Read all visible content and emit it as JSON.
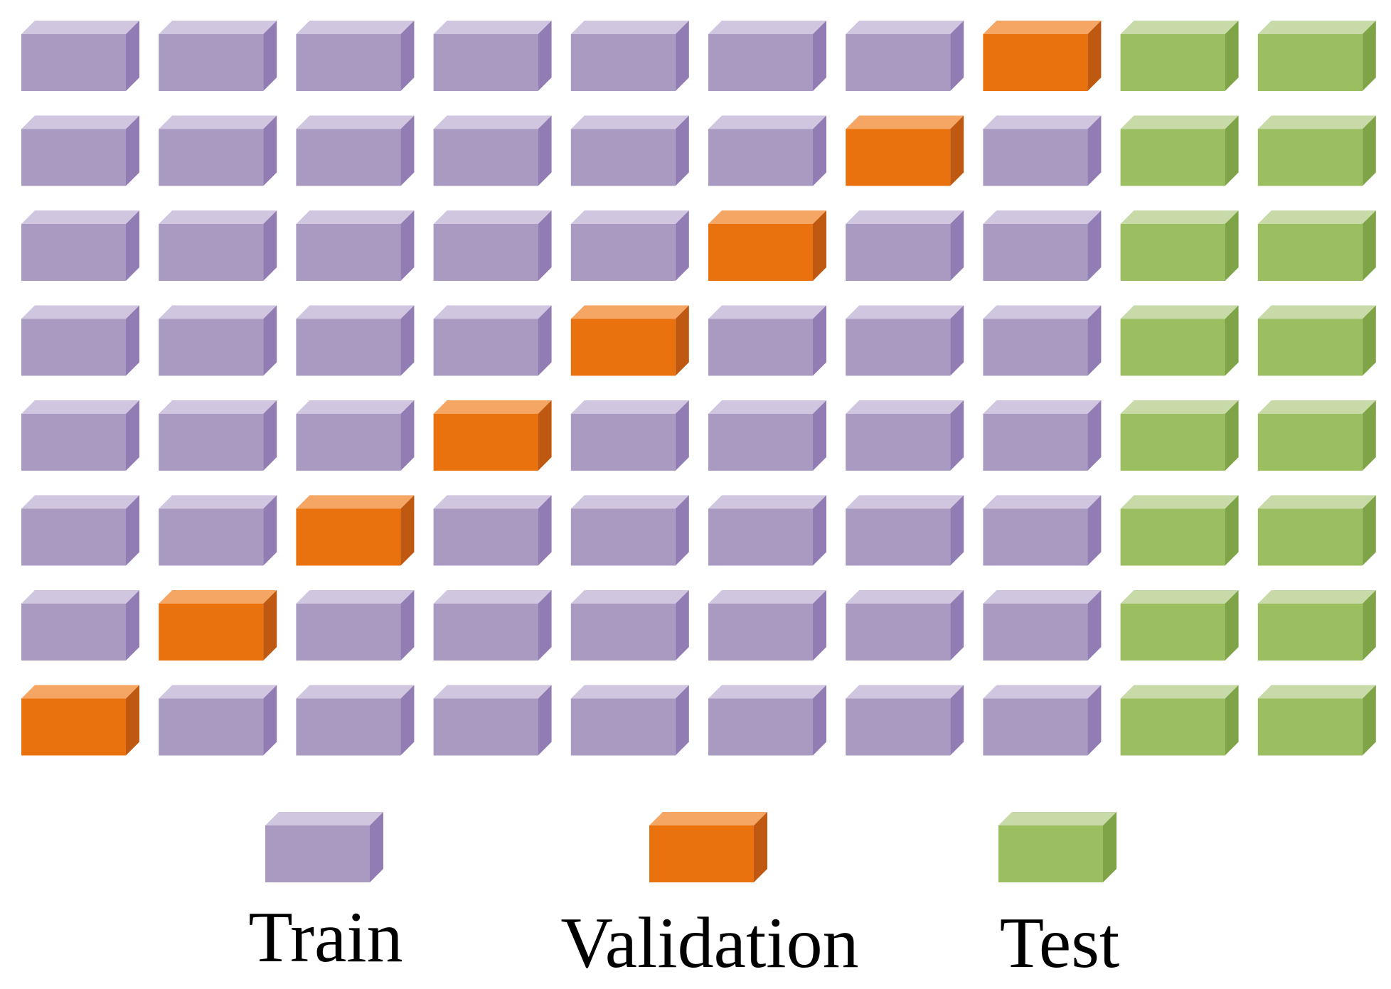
{
  "colors": {
    "train": {
      "front": "#A99AC1",
      "top": "#D0C6E0",
      "side": "#917CB3"
    },
    "validation": {
      "front": "#E9710E",
      "top": "#F5A564",
      "side": "#BF5810"
    },
    "test": {
      "front": "#9BBE61",
      "top": "#C7DAA7",
      "side": "#7EA447"
    }
  },
  "grid": {
    "rows": [
      [
        "train",
        "train",
        "train",
        "train",
        "train",
        "train",
        "train",
        "validation",
        "test",
        "test"
      ],
      [
        "train",
        "train",
        "train",
        "train",
        "train",
        "train",
        "validation",
        "train",
        "test",
        "test"
      ],
      [
        "train",
        "train",
        "train",
        "train",
        "train",
        "validation",
        "train",
        "train",
        "test",
        "test"
      ],
      [
        "train",
        "train",
        "train",
        "train",
        "validation",
        "train",
        "train",
        "train",
        "test",
        "test"
      ],
      [
        "train",
        "train",
        "train",
        "validation",
        "train",
        "train",
        "train",
        "train",
        "test",
        "test"
      ],
      [
        "train",
        "train",
        "validation",
        "train",
        "train",
        "train",
        "train",
        "train",
        "test",
        "test"
      ],
      [
        "train",
        "validation",
        "train",
        "train",
        "train",
        "train",
        "train",
        "train",
        "test",
        "test"
      ],
      [
        "validation",
        "train",
        "train",
        "train",
        "train",
        "train",
        "train",
        "train",
        "test",
        "test"
      ]
    ]
  },
  "legend": [
    {
      "key": "train",
      "label": "Train"
    },
    {
      "key": "validation",
      "label": "Validation"
    },
    {
      "key": "test",
      "label": "Test"
    }
  ]
}
